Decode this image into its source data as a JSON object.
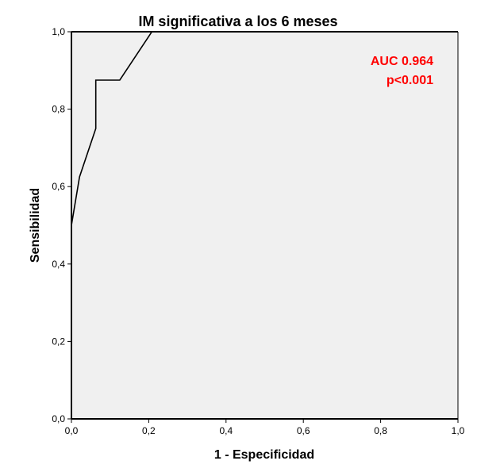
{
  "chart_data": {
    "type": "line",
    "title": "IM significativa a los 6 meses",
    "xlabel": "1 - Especificidad",
    "ylabel": "Sensibilidad",
    "xlim": [
      0,
      1
    ],
    "ylim": [
      0,
      1
    ],
    "x_ticks": [
      "0,0",
      "0,2",
      "0,4",
      "0,6",
      "0,8",
      "1,0"
    ],
    "y_ticks": [
      "0,0",
      "0,2",
      "0,4",
      "0,6",
      "0,8",
      "1,0"
    ],
    "grid": false,
    "series": [
      {
        "x": [
          0.0,
          0.0,
          0.021,
          0.063,
          0.063,
          0.125,
          0.208,
          1.0
        ],
        "y": [
          0.0,
          0.5,
          0.625,
          0.75,
          0.875,
          0.875,
          1.0,
          1.0
        ]
      }
    ],
    "annotations": [
      "AUC 0.964",
      "p<0.001"
    ],
    "annotation_position": "top-right",
    "colors": {
      "plot_background": "#f0f0f0",
      "line": "#000000",
      "annotation": "#ff0000"
    }
  }
}
